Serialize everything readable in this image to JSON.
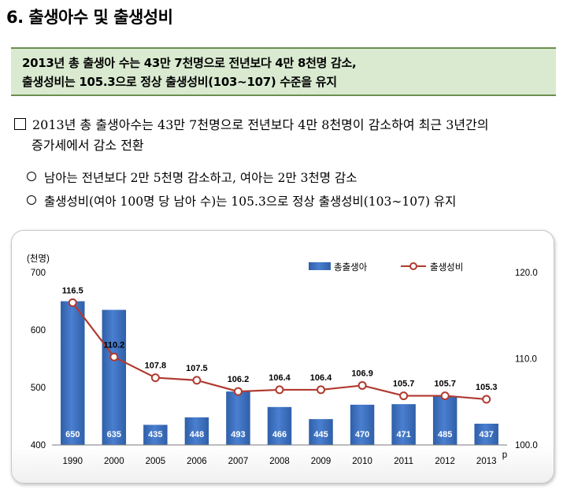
{
  "section": {
    "title": "6. 출생아수 및 출생성비"
  },
  "summary": {
    "line1": "2013년 총 출생아 수는 43만 7천명으로 전년보다 4만 8천명 감소,",
    "line2": "출생성비는 105.3으로 정상 출생성비(103∼107) 수준을 유지"
  },
  "body": {
    "main_line1": "2013년 총 출생아수는 43만 7천명으로 전년보다 4만 8천명이 감소하여 최근 3년간의",
    "main_line2": "증가세에서 감소 전환",
    "sub1": "남아는 전년보다 2만 5천명 감소하고, 여아는 2만 3천명 감소",
    "sub2": "출생성비(여아 100명 당 남아 수)는 105.3으로 정상 출생성비(103∼107) 유지"
  },
  "colors": {
    "bar": "#4a7fd0",
    "bar_dark": "#2f5fa8",
    "line": "#b03a30",
    "marker_fill": "#ffffff",
    "box_bg": "#d9ead0"
  },
  "chart_data": {
    "type": "bar+line",
    "unit_label": "(천명)",
    "categories": [
      "1990",
      "2000",
      "2005",
      "2006",
      "2007",
      "2008",
      "2009",
      "2010",
      "2011",
      "2012",
      "2013"
    ],
    "last_category_note": "p",
    "series": [
      {
        "name": "총출생아",
        "type": "bar",
        "axis": "left",
        "values": [
          650,
          635,
          435,
          448,
          493,
          466,
          445,
          470,
          471,
          485,
          437
        ]
      },
      {
        "name": "출생성비",
        "type": "line",
        "axis": "right",
        "values": [
          116.5,
          110.2,
          107.8,
          107.5,
          106.2,
          106.4,
          106.4,
          106.9,
          105.7,
          105.7,
          105.3
        ]
      }
    ],
    "left_axis": {
      "ylim": [
        400,
        700
      ],
      "ticks": [
        "400",
        "500",
        "600",
        "700"
      ]
    },
    "right_axis": {
      "ylim": [
        100,
        120
      ],
      "ticks": [
        "100.0",
        "110.0",
        "120.0"
      ]
    },
    "legend": {
      "placement": "top-right",
      "items": [
        "총출생아",
        "출생성비"
      ]
    }
  }
}
